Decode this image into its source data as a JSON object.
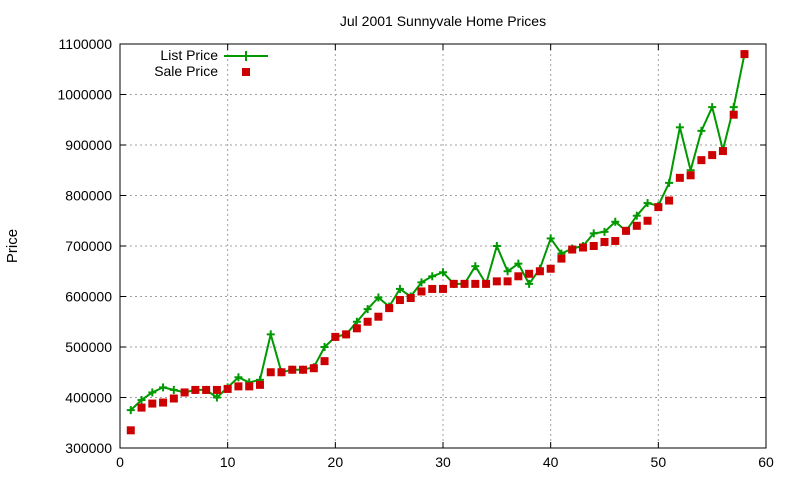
{
  "chart_data": {
    "type": "line",
    "title": "Jul 2001 Sunnyvale Home Prices",
    "xlabel": "",
    "ylabel": "Price",
    "xlim": [
      0,
      60
    ],
    "ylim": [
      300000,
      1100000
    ],
    "xticks": [
      0,
      10,
      20,
      30,
      40,
      50,
      60
    ],
    "yticks": [
      300000,
      400000,
      500000,
      600000,
      700000,
      800000,
      900000,
      1000000,
      1100000
    ],
    "grid": true,
    "legend_position": "top-left",
    "x": [
      1,
      2,
      3,
      4,
      5,
      6,
      7,
      8,
      9,
      10,
      11,
      12,
      13,
      14,
      15,
      16,
      17,
      18,
      19,
      20,
      21,
      22,
      23,
      24,
      25,
      26,
      27,
      28,
      29,
      30,
      31,
      32,
      33,
      34,
      35,
      36,
      37,
      38,
      39,
      40,
      41,
      42,
      43,
      44,
      45,
      46,
      47,
      48,
      49,
      50,
      51,
      52,
      53,
      54,
      55,
      56,
      57,
      58
    ],
    "series": [
      {
        "name": "List Price",
        "color": "#009900",
        "style": "line-plus",
        "values": [
          375000,
          395000,
          410000,
          420000,
          415000,
          410000,
          415000,
          415000,
          400000,
          420000,
          440000,
          430000,
          435000,
          525000,
          450000,
          455000,
          455000,
          460000,
          500000,
          520000,
          525000,
          550000,
          575000,
          598000,
          580000,
          615000,
          600000,
          628000,
          640000,
          648000,
          625000,
          625000,
          660000,
          625000,
          700000,
          650000,
          665000,
          625000,
          655000,
          715000,
          685000,
          695000,
          700000,
          725000,
          728000,
          748000,
          730000,
          760000,
          785000,
          780000,
          825000,
          935000,
          850000,
          928000,
          975000,
          890000,
          975000,
          1080000
        ]
      },
      {
        "name": "Sale Price",
        "color": "#cc0000",
        "style": "square",
        "values": [
          335000,
          380000,
          388000,
          390000,
          398000,
          410000,
          415000,
          415000,
          415000,
          417000,
          422000,
          422000,
          425000,
          450000,
          450000,
          455000,
          455000,
          458000,
          472000,
          520000,
          525000,
          537000,
          550000,
          560000,
          577000,
          593000,
          597000,
          610000,
          615000,
          615000,
          625000,
          625000,
          625000,
          625000,
          630000,
          630000,
          640000,
          645000,
          650000,
          655000,
          675000,
          693000,
          697000,
          700000,
          708000,
          710000,
          730000,
          740000,
          750000,
          777000,
          790000,
          835000,
          840000,
          870000,
          880000,
          888000,
          960000,
          1080000
        ]
      }
    ]
  }
}
